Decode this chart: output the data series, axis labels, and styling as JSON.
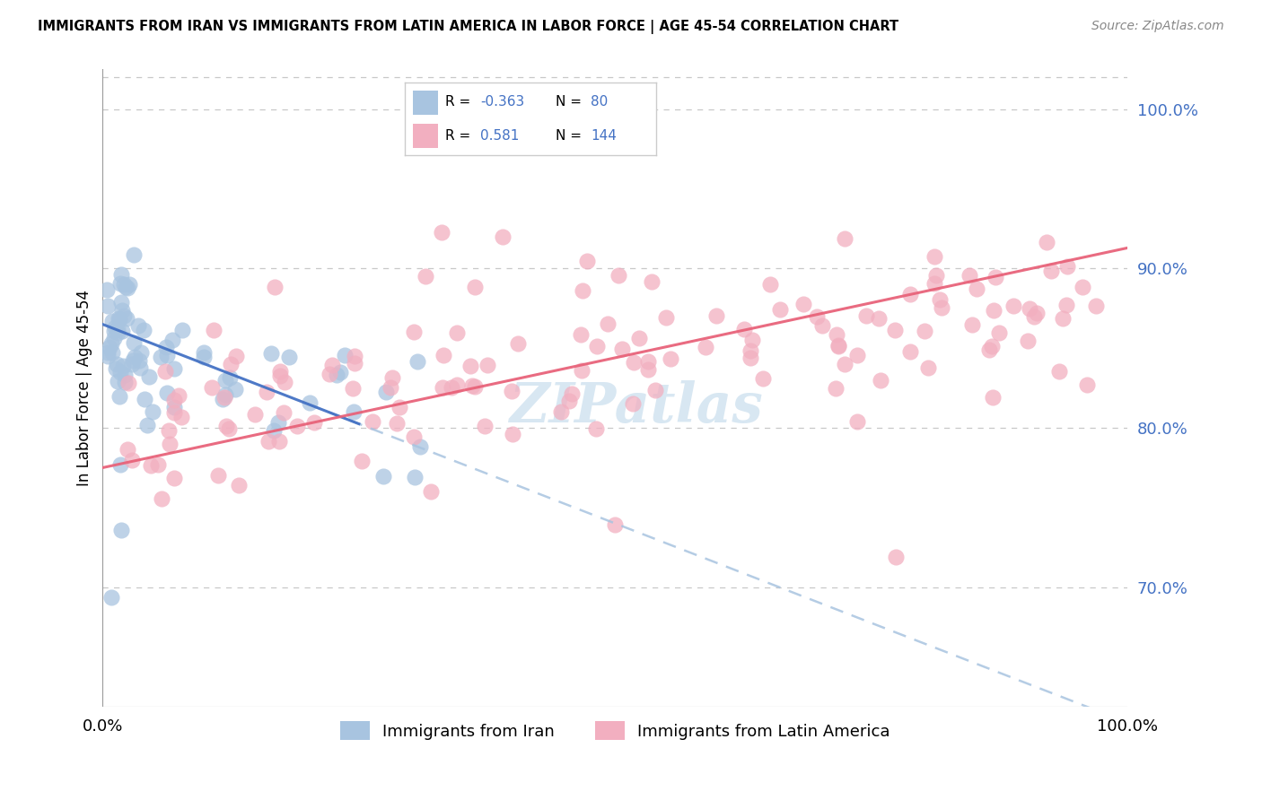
{
  "title": "IMMIGRANTS FROM IRAN VS IMMIGRANTS FROM LATIN AMERICA IN LABOR FORCE | AGE 45-54 CORRELATION CHART",
  "source": "Source: ZipAtlas.com",
  "ylabel": "In Labor Force | Age 45-54",
  "ylabel_right_ticks": [
    70.0,
    80.0,
    90.0,
    100.0
  ],
  "xmin": 0.0,
  "xmax": 1.0,
  "ymin": 0.625,
  "ymax": 1.025,
  "iran_R": -0.363,
  "iran_N": 80,
  "latam_R": 0.581,
  "latam_N": 144,
  "iran_color": "#a8c4e0",
  "latam_color": "#f2afc0",
  "iran_line_color": "#4472c4",
  "latam_line_color": "#e8637a",
  "iran_dash_color": "#a8c4e0",
  "background_color": "#ffffff",
  "watermark": "ZIPatlas",
  "grid_color": "#c8c8c8"
}
